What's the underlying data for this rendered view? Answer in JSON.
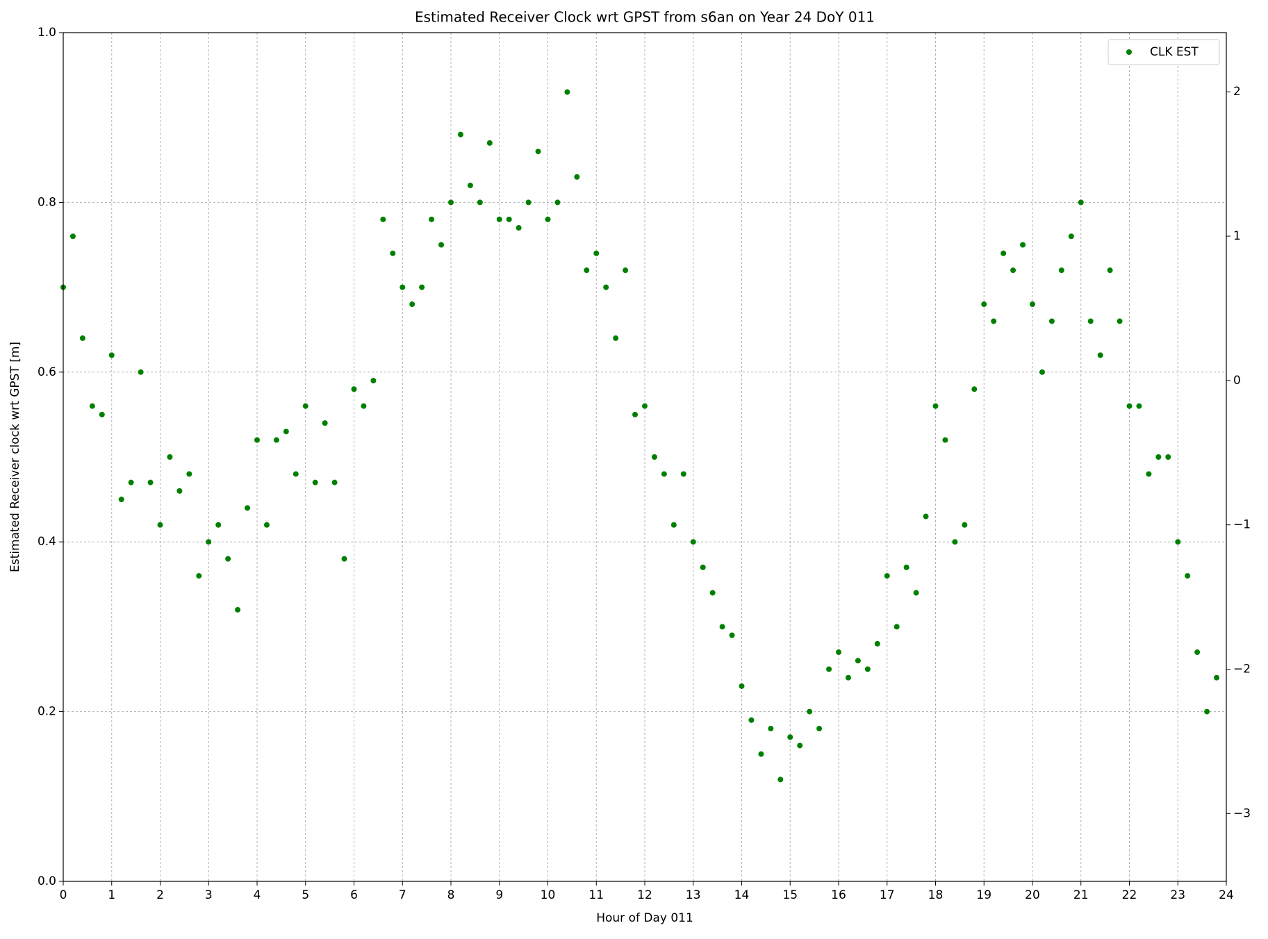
{
  "chart_data": {
    "type": "scatter",
    "title": "Estimated Receiver Clock wrt GPST from s6an on Year 24 DoY 011",
    "x_label": "Hour of Day 011",
    "y_label": "Estimated Receiver clock wrt GPST [m]",
    "xlim": [
      0,
      24
    ],
    "xticks": [
      0,
      1,
      2,
      3,
      4,
      5,
      6,
      7,
      8,
      9,
      10,
      11,
      12,
      13,
      14,
      15,
      16,
      17,
      18,
      19,
      20,
      21,
      22,
      23,
      24
    ],
    "ylim": [
      0,
      1
    ],
    "yticks": [
      {
        "value": 0,
        "label": "0.0"
      },
      0.2,
      0.4,
      0.6,
      0.8,
      {
        "value": 1,
        "label": "1.0"
      }
    ],
    "y2lim": [
      -3.47,
      2.41
    ],
    "y2ticks": [
      {
        "value": -3,
        "label": "−3"
      },
      {
        "value": -2,
        "label": "−2"
      },
      {
        "value": -1,
        "label": "−1"
      },
      0,
      1,
      2
    ],
    "grid": true,
    "legend": "upper right",
    "series": [
      {
        "name": "CLK EST",
        "color": "#008000",
        "x": [
          0.0,
          0.2,
          0.4,
          0.6,
          0.8,
          1.0,
          1.2,
          1.4,
          1.6,
          1.8,
          2.0,
          2.2,
          2.4,
          2.6,
          2.8,
          3.0,
          3.2,
          3.4,
          3.6,
          3.8,
          4.0,
          4.2,
          4.4,
          4.6,
          4.8,
          5.0,
          5.2,
          5.4,
          5.6,
          5.8,
          6.0,
          6.2,
          6.4,
          6.6,
          6.8,
          7.0,
          7.2,
          7.4,
          7.6,
          7.8,
          8.0,
          8.2,
          8.4,
          8.6,
          8.8,
          9.0,
          9.2,
          9.4,
          9.6,
          9.8,
          10.0,
          10.2,
          10.4,
          10.6,
          10.8,
          11.0,
          11.2,
          11.4,
          11.6,
          11.8,
          12.0,
          12.2,
          12.4,
          12.6,
          12.8,
          13.0,
          13.2,
          13.4,
          13.6,
          13.8,
          14.0,
          14.2,
          14.4,
          14.6,
          14.8,
          15.0,
          15.2,
          15.4,
          15.6,
          15.8,
          16.0,
          16.2,
          16.4,
          16.6,
          16.8,
          17.0,
          17.2,
          17.4,
          17.6,
          17.8,
          18.0,
          18.2,
          18.4,
          18.6,
          18.8,
          19.0,
          19.2,
          19.4,
          19.6,
          19.8,
          20.0,
          20.2,
          20.4,
          20.6,
          20.8,
          21.0,
          21.2,
          21.4,
          21.6,
          21.8,
          22.0,
          22.2,
          22.4,
          22.6,
          22.8,
          23.0,
          23.2,
          23.4,
          23.6,
          23.8
        ],
        "values": [
          0.7,
          0.76,
          0.64,
          0.56,
          0.55,
          0.62,
          0.45,
          0.47,
          0.6,
          0.47,
          0.42,
          0.5,
          0.46,
          0.48,
          0.36,
          0.4,
          0.42,
          0.38,
          0.32,
          0.44,
          0.52,
          0.42,
          0.52,
          0.53,
          0.48,
          0.56,
          0.47,
          0.54,
          0.47,
          0.38,
          0.58,
          0.56,
          0.59,
          0.78,
          0.74,
          0.7,
          0.68,
          0.7,
          0.78,
          0.75,
          0.8,
          0.88,
          0.82,
          0.8,
          0.87,
          0.78,
          0.78,
          0.77,
          0.8,
          0.86,
          0.78,
          0.8,
          0.93,
          0.83,
          0.72,
          0.74,
          0.7,
          0.64,
          0.72,
          0.55,
          0.56,
          0.5,
          0.48,
          0.42,
          0.48,
          0.4,
          0.37,
          0.34,
          0.3,
          0.29,
          0.23,
          0.19,
          0.15,
          0.18,
          0.12,
          0.17,
          0.16,
          0.2,
          0.18,
          0.25,
          0.27,
          0.24,
          0.26,
          0.25,
          0.28,
          0.36,
          0.3,
          0.37,
          0.34,
          0.43,
          0.56,
          0.52,
          0.4,
          0.42,
          0.58,
          0.68,
          0.66,
          0.74,
          0.72,
          0.75,
          0.68,
          0.6,
          0.66,
          0.72,
          0.76,
          0.8,
          0.66,
          0.62,
          0.72,
          0.66,
          0.56,
          0.56,
          0.48,
          0.5,
          0.5,
          0.4,
          0.36,
          0.27,
          0.2,
          0.24
        ]
      }
    ]
  }
}
